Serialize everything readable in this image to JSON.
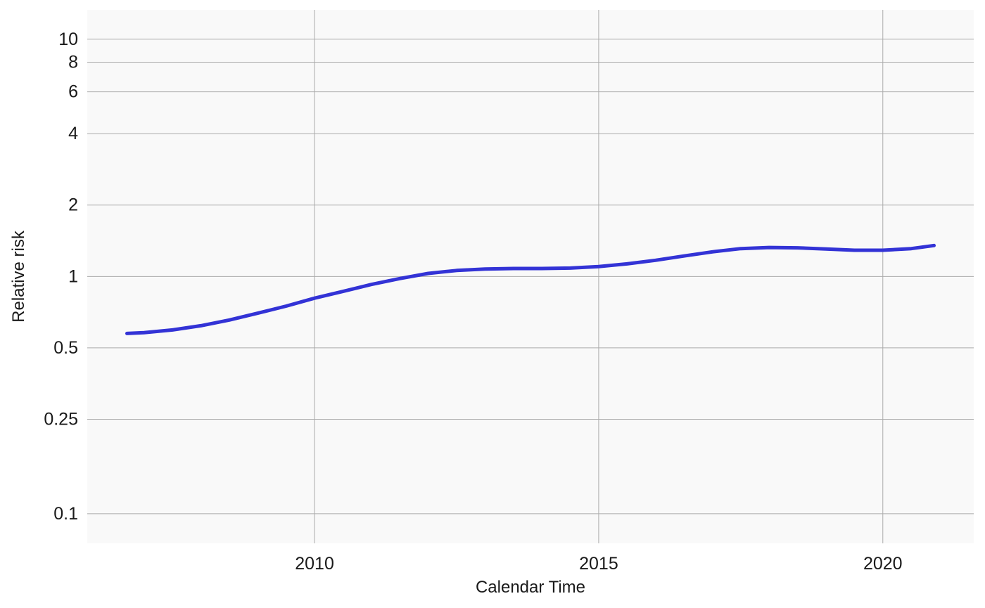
{
  "chart_data": {
    "type": "line",
    "title": "",
    "xlabel": "Calendar Time",
    "ylabel": "Relative risk",
    "x_scale": "linear",
    "y_scale": "log",
    "xlim": [
      2006.0,
      2021.6
    ],
    "ylim": [
      0.075,
      13.3
    ],
    "x_ticks": [
      2010,
      2015,
      2020
    ],
    "x_tick_labels": [
      "2010",
      "2015",
      "2020"
    ],
    "y_ticks": [
      0.1,
      0.25,
      0.5,
      1,
      2,
      4,
      6,
      8,
      10
    ],
    "y_tick_labels": [
      "0.1",
      "0.25",
      "0.5",
      "1",
      "2",
      "4",
      "6",
      "8",
      "10"
    ],
    "grid": true,
    "legend": "none",
    "colors": {
      "panel_background": "#f9f9f9",
      "gridline": "#ababab",
      "line": "#3333d6"
    },
    "series": [
      {
        "x": [
          2006.7,
          2007.0,
          2007.5,
          2008.0,
          2008.5,
          2009.0,
          2009.5,
          2010.0,
          2010.5,
          2011.0,
          2011.5,
          2012.0,
          2012.5,
          2013.0,
          2013.5,
          2014.0,
          2014.5,
          2015.0,
          2015.5,
          2016.0,
          2016.5,
          2017.0,
          2017.5,
          2018.0,
          2018.5,
          2019.0,
          2019.5,
          2020.0,
          2020.5,
          2020.9
        ],
        "y": [
          0.575,
          0.58,
          0.595,
          0.62,
          0.655,
          0.7,
          0.75,
          0.81,
          0.865,
          0.925,
          0.98,
          1.03,
          1.06,
          1.075,
          1.08,
          1.08,
          1.085,
          1.1,
          1.13,
          1.17,
          1.22,
          1.27,
          1.31,
          1.325,
          1.32,
          1.305,
          1.29,
          1.29,
          1.31,
          1.35
        ]
      }
    ]
  }
}
